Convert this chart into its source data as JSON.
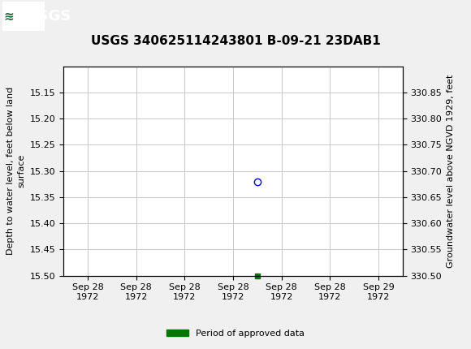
{
  "title": "USGS 340625114243801 B-09-21 23DAB1",
  "ylabel_left": "Depth to water level, feet below land\nsurface",
  "ylabel_right": "Groundwater level above NGVD 1929, feet",
  "ylim_left": [
    15.5,
    15.1
  ],
  "ylim_right": [
    330.5,
    330.9
  ],
  "yticks_left": [
    15.15,
    15.2,
    15.25,
    15.3,
    15.35,
    15.4,
    15.45,
    15.5
  ],
  "yticks_right": [
    330.85,
    330.8,
    330.75,
    330.7,
    330.65,
    330.6,
    330.55,
    330.5
  ],
  "data_point_x": 3.5,
  "data_point_y": 15.32,
  "data_point_color": "#0000bb",
  "green_square_x": 3.5,
  "green_square_y": 15.5,
  "green_square_color": "#007700",
  "background_color": "#f0f0f0",
  "plot_background": "#ffffff",
  "grid_color": "#c8c8c8",
  "header_color": "#1a6b3c",
  "header_text_color": "#ffffff",
  "title_fontsize": 11,
  "axis_fontsize": 8,
  "tick_fontsize": 8,
  "legend_label": "Period of approved data",
  "legend_color": "#007700",
  "xtick_labels": [
    "Sep 28\n1972",
    "Sep 28\n1972",
    "Sep 28\n1972",
    "Sep 28\n1972",
    "Sep 28\n1972",
    "Sep 28\n1972",
    "Sep 29\n1972"
  ],
  "xtick_positions": [
    0,
    1,
    2,
    3,
    4,
    5,
    6
  ],
  "xlim": [
    -0.5,
    6.5
  ]
}
